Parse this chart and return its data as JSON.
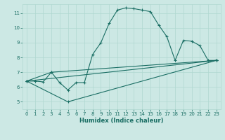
{
  "xlabel": "Humidex (Indice chaleur)",
  "background_color": "#cce8e4",
  "grid_color": "#b0d8d0",
  "line_color": "#1a6e64",
  "xlim": [
    -0.5,
    23.5
  ],
  "ylim": [
    4.5,
    11.6
  ],
  "xticks": [
    0,
    1,
    2,
    3,
    4,
    5,
    6,
    7,
    8,
    9,
    10,
    11,
    12,
    13,
    14,
    15,
    16,
    17,
    18,
    19,
    20,
    21,
    22,
    23
  ],
  "yticks": [
    5,
    6,
    7,
    8,
    9,
    10,
    11
  ],
  "line1_x": [
    0,
    1,
    2,
    3,
    4,
    5,
    6,
    7,
    8,
    9,
    10,
    11,
    12,
    13,
    14,
    15,
    16,
    17,
    18,
    19,
    20,
    21,
    22,
    23
  ],
  "line1_y": [
    6.4,
    6.4,
    6.35,
    7.0,
    6.3,
    5.8,
    6.3,
    6.3,
    8.2,
    9.0,
    10.3,
    11.2,
    11.35,
    11.3,
    11.2,
    11.1,
    10.2,
    9.4,
    7.8,
    9.15,
    9.1,
    8.8,
    7.8,
    7.8
  ],
  "line2_x": [
    0,
    23
  ],
  "line2_y": [
    6.4,
    7.8
  ],
  "line3_x": [
    0,
    5,
    23
  ],
  "line3_y": [
    6.4,
    5.0,
    7.8
  ],
  "line4_x": [
    0,
    3,
    23
  ],
  "line4_y": [
    6.4,
    7.0,
    7.8
  ],
  "markersize": 2.5,
  "linewidth": 0.8,
  "tick_fontsize": 5.0,
  "xlabel_fontsize": 6.0
}
